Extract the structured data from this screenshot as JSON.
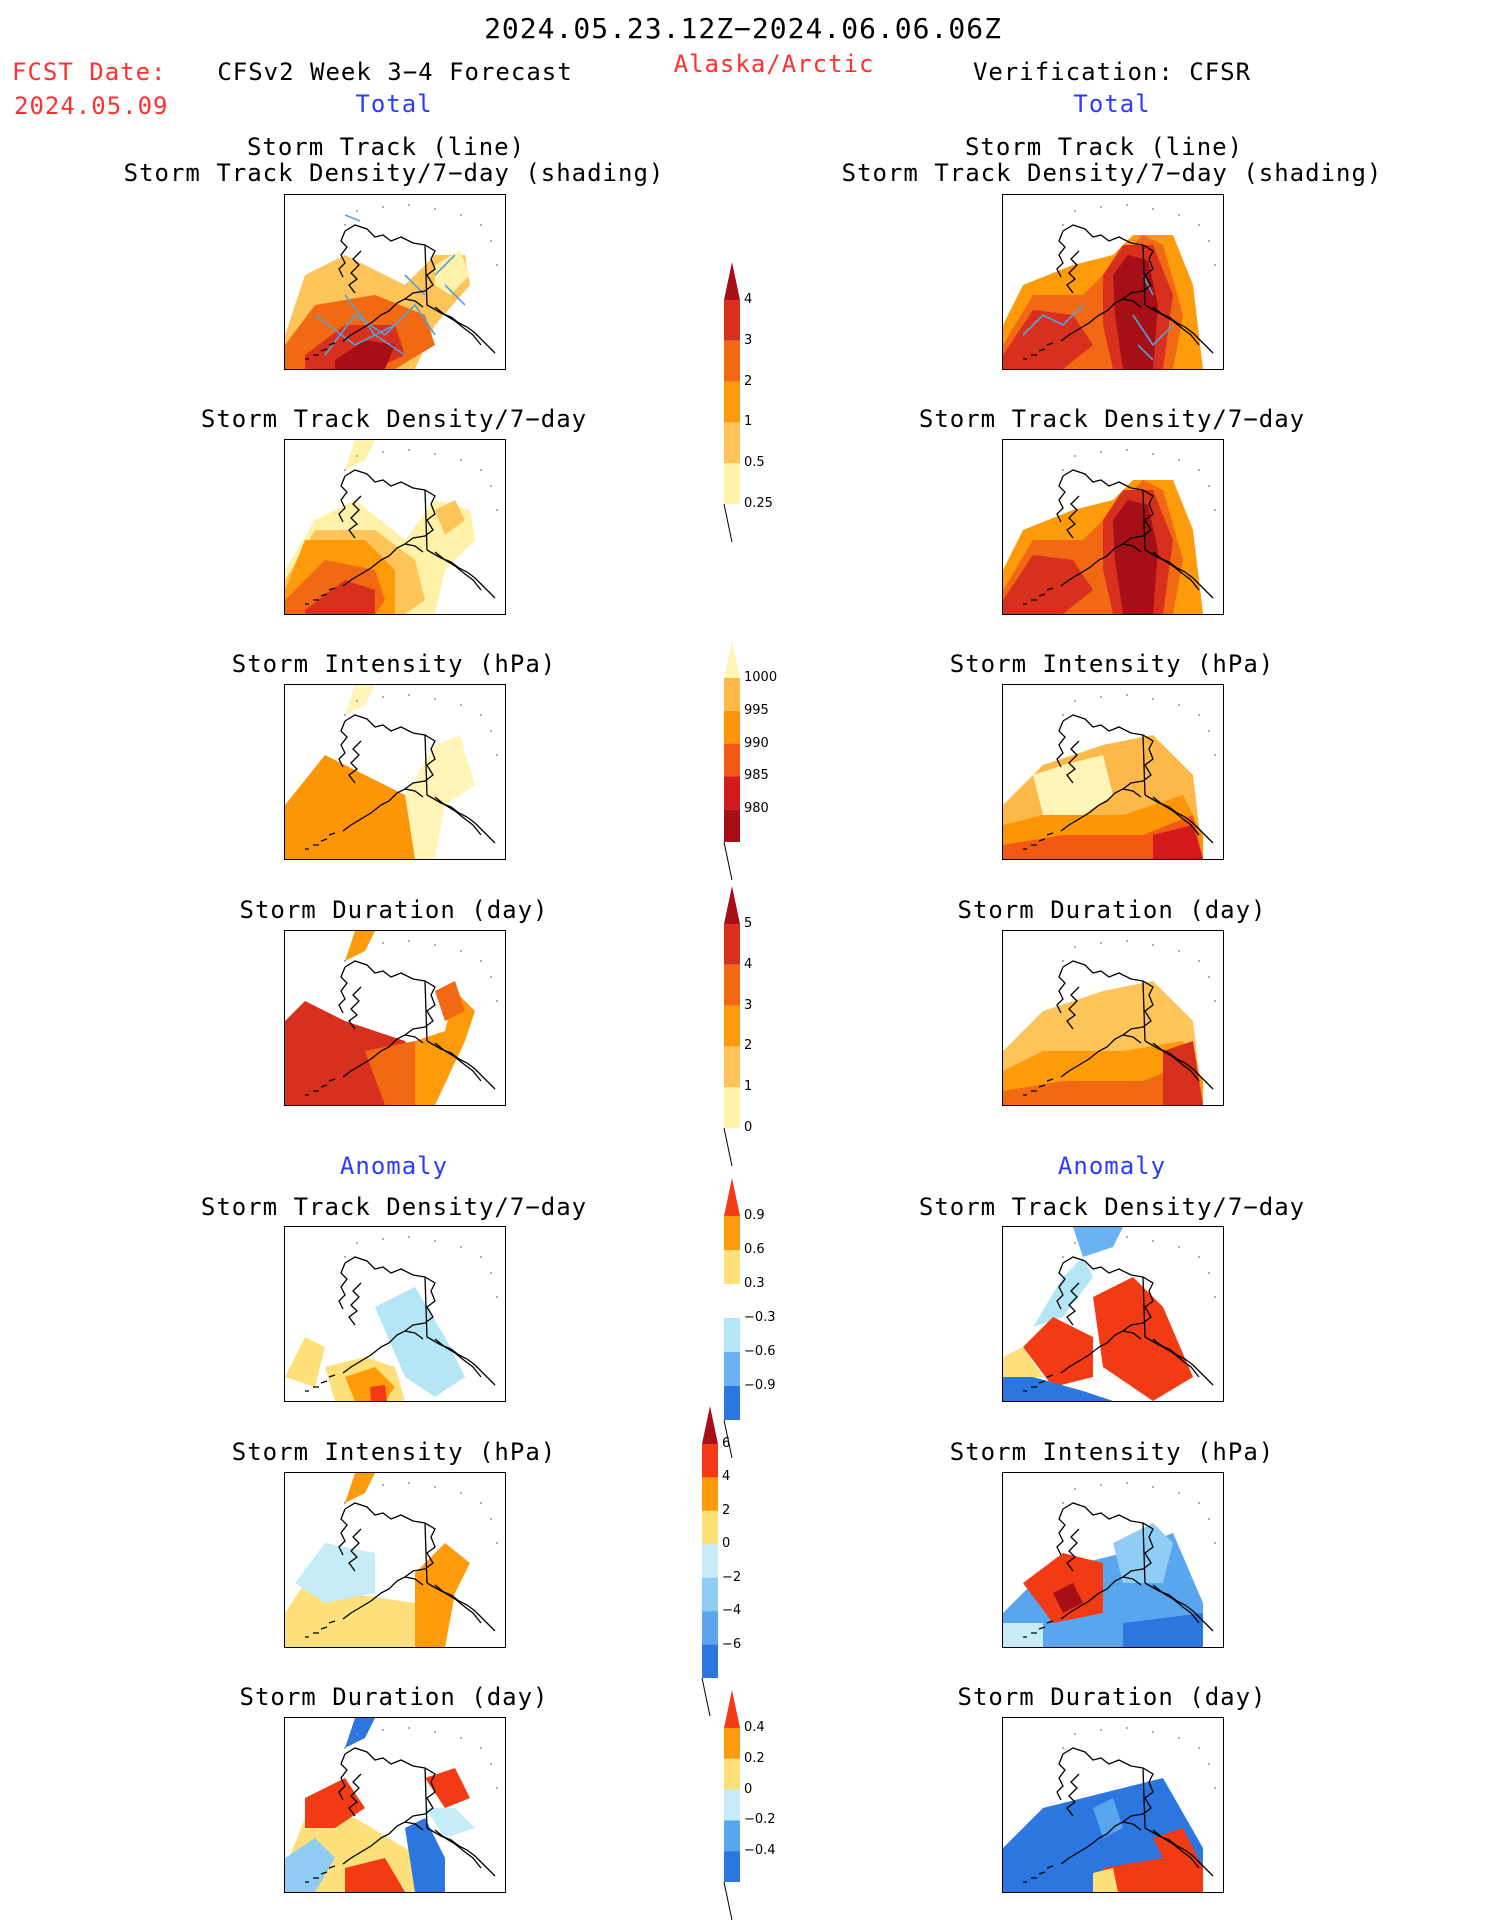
{
  "header": {
    "date_range": "2024.05.23.12Z−2024.06.06.06Z",
    "fcst_label": "FCST Date:",
    "fcst_date": "2024.05.09",
    "model_title": "CFSv2 Week 3−4 Forecast",
    "region": "Alaska/Arctic",
    "verification": "Verification: CFSR"
  },
  "sections": {
    "total": "Total",
    "anomaly": "Anomaly"
  },
  "panel_titles": {
    "track_line": "Storm Track (line)",
    "track_shading": "Storm Track Density/7−day (shading)",
    "track_density": "Storm Track Density/7−day",
    "intensity": "Storm Intensity (hPa)",
    "duration": "Storm Duration (day)"
  },
  "colorbars": {
    "density_total": {
      "labels": [
        "4",
        "3",
        "2",
        "1",
        "0.5",
        "0.25"
      ],
      "colors": [
        "#a50f15",
        "#d7301f",
        "#f16913",
        "#fd9b0b",
        "#fdc45a",
        "#fff1a8"
      ]
    },
    "intensity_total": {
      "labels": [
        "1000",
        "995",
        "990",
        "985",
        "980"
      ],
      "colors": [
        "#fff5b8",
        "#fdb84a",
        "#fd9606",
        "#f25a14",
        "#d3191c",
        "#a50f15"
      ]
    },
    "duration_total": {
      "labels": [
        "5",
        "4",
        "3",
        "2",
        "1",
        "0"
      ],
      "colors": [
        "#a50f15",
        "#d7301f",
        "#f16913",
        "#fd9b0b",
        "#fdc45a",
        "#fff1a8"
      ]
    },
    "density_anom": {
      "labels": [
        "0.9",
        "0.6",
        "0.3",
        "−0.3",
        "−0.6",
        "−0.9"
      ],
      "colors": [
        "#f23a14",
        "#fd9b0b",
        "#fde07a",
        "#ffffff",
        "#b5e6f5",
        "#6ab3f2",
        "#2c76e0"
      ]
    },
    "intensity_anom": {
      "labels": [
        "6",
        "4",
        "2",
        "0",
        "−2",
        "−4",
        "−6"
      ],
      "colors": [
        "#a50f15",
        "#f23a14",
        "#fd9b0b",
        "#fde07a",
        "#c5ecf7",
        "#8fcdf5",
        "#5aa6ee",
        "#2c76e0"
      ]
    },
    "duration_anom": {
      "labels": [
        "0.4",
        "0.2",
        "0",
        "−0.2",
        "−0.4"
      ],
      "colors": [
        "#f23a14",
        "#fd9b0b",
        "#fde07a",
        "#c5ecf7",
        "#5aa6ee",
        "#2c76e0"
      ]
    }
  },
  "legend_colors": {
    "track_line": "#5aa0d8",
    "coast": "#000000"
  }
}
